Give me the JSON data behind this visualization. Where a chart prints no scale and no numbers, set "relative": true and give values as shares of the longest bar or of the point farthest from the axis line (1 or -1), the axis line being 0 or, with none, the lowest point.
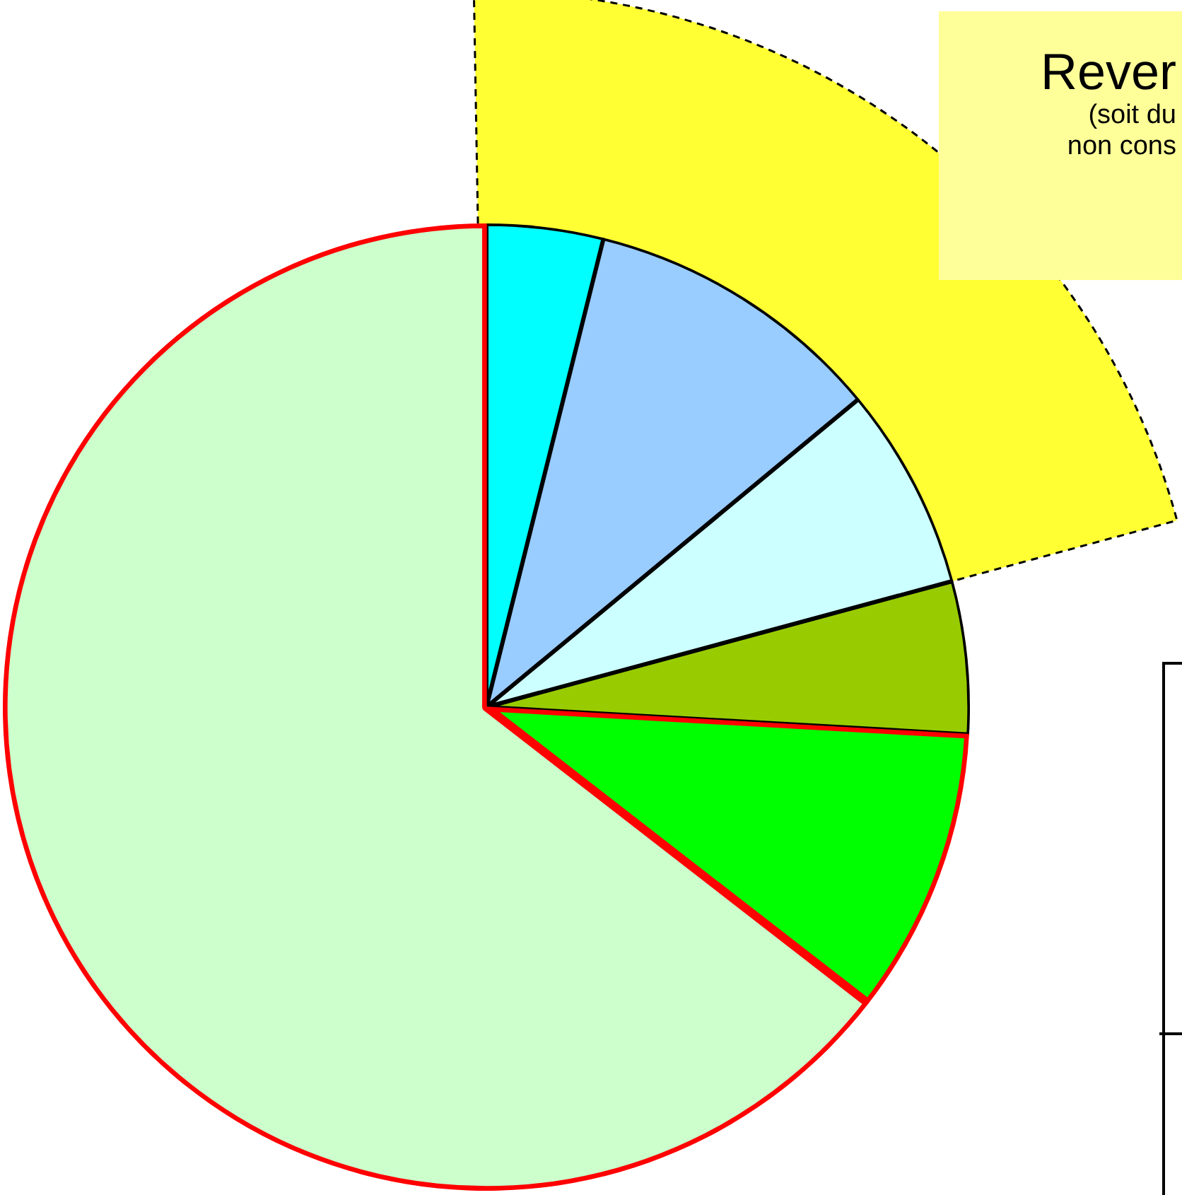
{
  "chart_data": {
    "type": "pie",
    "relative": true,
    "categories": [
      null,
      null,
      null,
      null,
      null,
      null
    ],
    "values": [
      3.9,
      10.1,
      6.8,
      5.1,
      9.6,
      64.5
    ],
    "colors": [
      "#00ffff",
      "#99ccff",
      "#ccffff",
      "#99cc00",
      "#00ff00",
      "#ccffcc"
    ],
    "annotations": [
      "Rever",
      "(soit du",
      "non cons"
    ],
    "legend": false
  }
}
